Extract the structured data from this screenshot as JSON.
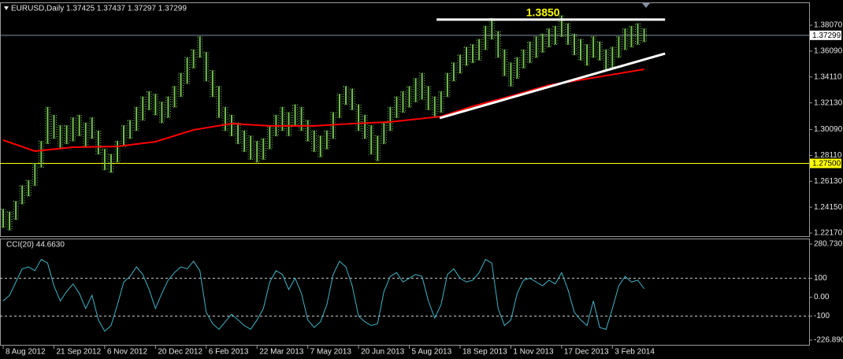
{
  "chart_data": [
    {
      "type": "range",
      "title": "EURUSD,Daily 1.37425 1.37437 1.37297 1.37299",
      "color": "#74c150",
      "high": [
        1.24,
        1.238,
        1.246,
        1.258,
        1.262,
        1.275,
        1.292,
        1.318,
        1.312,
        1.304,
        1.304,
        1.31,
        1.312,
        1.306,
        1.31,
        1.3,
        1.286,
        1.282,
        1.292,
        1.304,
        1.308,
        1.318,
        1.326,
        1.33,
        1.328,
        1.322,
        1.326,
        1.334,
        1.344,
        1.356,
        1.362,
        1.372,
        1.36,
        1.346,
        1.334,
        1.318,
        1.312,
        1.306,
        1.3,
        1.296,
        1.292,
        1.294,
        1.304,
        1.312,
        1.318,
        1.314,
        1.32,
        1.318,
        1.308,
        1.3,
        1.296,
        1.3,
        1.314,
        1.328,
        1.334,
        1.332,
        1.32,
        1.312,
        1.304,
        1.296,
        1.306,
        1.318,
        1.326,
        1.33,
        1.334,
        1.34,
        1.344,
        1.334,
        1.326,
        1.33,
        1.344,
        1.352,
        1.358,
        1.364,
        1.366,
        1.37,
        1.38,
        1.386,
        1.376,
        1.362,
        1.352,
        1.356,
        1.362,
        1.368,
        1.372,
        1.374,
        1.378,
        1.38,
        1.388,
        1.382,
        1.374,
        1.37,
        1.366,
        1.372,
        1.368,
        1.362,
        1.364,
        1.372,
        1.378,
        1.38,
        1.382,
        1.378
      ],
      "low": [
        1.226,
        1.224,
        1.232,
        1.244,
        1.25,
        1.258,
        1.272,
        1.29,
        1.294,
        1.286,
        1.29,
        1.292,
        1.296,
        1.288,
        1.294,
        1.282,
        1.27,
        1.268,
        1.276,
        1.288,
        1.294,
        1.3,
        1.308,
        1.316,
        1.312,
        1.306,
        1.31,
        1.318,
        1.326,
        1.336,
        1.348,
        1.356,
        1.338,
        1.326,
        1.31,
        1.3,
        1.296,
        1.29,
        1.284,
        1.278,
        1.276,
        1.278,
        1.286,
        1.296,
        1.3,
        1.296,
        1.304,
        1.3,
        1.292,
        1.284,
        1.28,
        1.286,
        1.294,
        1.31,
        1.32,
        1.316,
        1.3,
        1.294,
        1.282,
        1.277,
        1.29,
        1.3,
        1.31,
        1.314,
        1.318,
        1.322,
        1.324,
        1.316,
        1.31,
        1.314,
        1.326,
        1.338,
        1.344,
        1.35,
        1.352,
        1.354,
        1.362,
        1.37,
        1.356,
        1.342,
        1.334,
        1.34,
        1.348,
        1.352,
        1.356,
        1.36,
        1.364,
        1.366,
        1.372,
        1.366,
        1.358,
        1.354,
        1.35,
        1.356,
        1.354,
        1.346,
        1.348,
        1.356,
        1.362,
        1.364,
        1.366,
        1.368
      ],
      "ma": {
        "color": "#ff0000",
        "x": [
          0,
          5,
          11,
          18,
          24,
          30,
          36,
          42,
          49,
          55,
          61,
          69,
          74,
          80,
          86,
          92,
          101
        ],
        "values": [
          1.2928,
          1.2844,
          1.2874,
          1.288,
          1.2916,
          1.3006,
          1.3054,
          1.3037,
          1.3037,
          1.3054,
          1.3067,
          1.3109,
          1.3187,
          1.3265,
          1.3349,
          1.3397,
          1.347
        ]
      },
      "lines": [
        {
          "x": [
            68.3,
            104.3
          ],
          "y": [
            1.385,
            1.385
          ],
          "color": "#ffffff",
          "label": "1.3850",
          "label_color": "#ffff00"
        },
        {
          "x": [
            68.8,
            104.3
          ],
          "y": [
            1.3097,
            1.359
          ],
          "color": "#ffffff"
        }
      ],
      "hlines": [
        {
          "value": 1.37299,
          "label": "1.37299",
          "color": "#7f8fa0",
          "box": "#ffffff"
        },
        {
          "value": 1.275,
          "label": "1.27500",
          "color": "#ffff00",
          "box": "#ffff00"
        }
      ],
      "xlim": [
        -0.5,
        127
      ],
      "ylim": [
        1.2193,
        1.3976
      ],
      "yticks": [
        {
          "value": 1.3807,
          "label": "1.38070"
        },
        {
          "value": 1.3609,
          "label": "1.36090"
        },
        {
          "value": 1.3411,
          "label": "1.34110"
        },
        {
          "value": 1.3213,
          "label": "1.32130"
        },
        {
          "value": 1.3009,
          "label": "1.30090"
        },
        {
          "value": 1.2811,
          "label": "1.28110"
        },
        {
          "value": 1.2613,
          "label": "1.26130"
        },
        {
          "value": 1.2415,
          "label": "1.24150"
        },
        {
          "value": 1.2217,
          "label": "1.22170"
        }
      ]
    },
    {
      "type": "line",
      "title": "CCI(20) 44.6630",
      "color": "#3fb4c6",
      "values": [
        -20,
        10,
        80,
        150,
        160,
        140,
        200,
        180,
        60,
        -20,
        30,
        70,
        20,
        -60,
        10,
        -120,
        -180,
        -150,
        -40,
        80,
        110,
        160,
        120,
        40,
        -60,
        20,
        90,
        130,
        160,
        150,
        190,
        140,
        -80,
        -140,
        -170,
        -130,
        -90,
        -120,
        -150,
        -170,
        -120,
        -60,
        80,
        140,
        120,
        40,
        100,
        20,
        -120,
        -160,
        -130,
        -40,
        120,
        190,
        160,
        60,
        -100,
        -130,
        -150,
        -140,
        30,
        110,
        130,
        80,
        100,
        120,
        110,
        -20,
        -110,
        -40,
        120,
        150,
        100,
        80,
        90,
        130,
        200,
        180,
        -60,
        -150,
        -120,
        20,
        90,
        100,
        80,
        60,
        90,
        70,
        130,
        40,
        -80,
        -120,
        -150,
        -20,
        -160,
        -170,
        -60,
        60,
        110,
        80,
        90,
        44.663
      ],
      "levels": [
        100,
        -100
      ],
      "xlim": [
        -0.5,
        127
      ],
      "ylim": [
        -226.8905,
        280.7301
      ],
      "yticks": [
        280.7301,
        100,
        {
          "value": 0,
          "label": "0.00"
        },
        -100,
        -226.8905
      ],
      "xticks": [
        {
          "value": 0,
          "label": "8 Aug 2012"
        },
        {
          "value": 8,
          "label": "21 Sep 2012"
        },
        {
          "value": 16,
          "label": "6 Nov 2012"
        },
        {
          "value": 24,
          "label": "20 Dec 2012"
        },
        {
          "value": 32,
          "label": "6 Feb 2013"
        },
        {
          "value": 40,
          "label": "22 Mar 2013"
        },
        {
          "value": 48,
          "label": "7 May 2013"
        },
        {
          "value": 56,
          "label": "20 Jun 2013"
        },
        {
          "value": 64,
          "label": "5 Aug 2013"
        },
        {
          "value": 72,
          "label": "18 Sep 2013"
        },
        {
          "value": 80,
          "label": "1 Nov 2013"
        },
        {
          "value": 88,
          "label": "17 Dec 2013"
        },
        {
          "value": 96,
          "label": "3 Feb 2014"
        }
      ]
    }
  ]
}
